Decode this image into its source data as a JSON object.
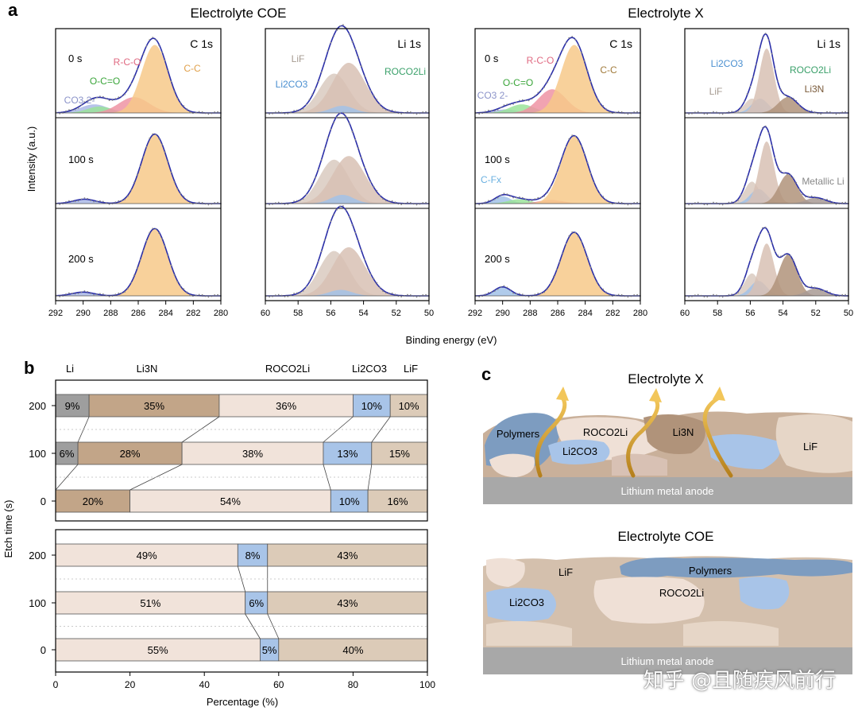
{
  "panel_a": {
    "label": "a",
    "group_titles": [
      "Electrolyte COE",
      "Electrolyte X"
    ],
    "ylabel": "Intensity (a.u.)",
    "xlabel": "Binding energy (eV)",
    "etch_labels": [
      "0 s",
      "100 s",
      "200 s"
    ],
    "c1s_ticks": [
      "292",
      "290",
      "288",
      "286",
      "284",
      "282",
      "280"
    ],
    "li1s_ticks": [
      "60",
      "58",
      "56",
      "54",
      "52",
      "50"
    ],
    "subplots": [
      {
        "title": "C 1s",
        "labels": [
          "CO3 2-",
          "O-C=O",
          "R-C-O",
          "C-C"
        ]
      },
      {
        "title": "Li 1s",
        "labels": [
          "LiF",
          "Li2CO3",
          "ROCO2Li"
        ]
      },
      {
        "title": "C 1s",
        "labels": [
          "CO3 2-",
          "O-C=O",
          "R-C-O",
          "C-C",
          "C-Fx"
        ]
      },
      {
        "title": "Li 1s",
        "labels": [
          "Li2CO3",
          "ROCO2Li",
          "LiF",
          "Li3N",
          "Metallic Li"
        ]
      }
    ],
    "colors": {
      "CC": "#f7c98a",
      "RCO": "#ef93a3",
      "OCO": "#9be39a",
      "CO3": "#aab8e6",
      "LiF": "#d9cac0",
      "ROCO2Li": "#d8c1b4",
      "Li2CO3": "#a2c2e8",
      "Li3N": "#b0937a",
      "fit": "#2b2fa8"
    }
  },
  "panel_b": {
    "label": "b",
    "xlabel": "Percentage (%)",
    "ylabel": "Etch time (s)",
    "xticks": [
      "0",
      "20",
      "40",
      "60",
      "80",
      "100"
    ],
    "header_labels": [
      "Li",
      "Li3N",
      "ROCO2Li",
      "Li2CO3",
      "LiF"
    ],
    "colors": {
      "Li": "#9e9e9e",
      "Li3N": "#c2a588",
      "ROCO2Li": "#f1e3da",
      "Li2CO3": "#a8c4e8",
      "LiF": "#dccbb8"
    }
  },
  "chart_data": [
    {
      "type": "bar",
      "title": "",
      "stacked": true,
      "orientation": "horizontal",
      "xlabel": "Percentage (%)",
      "ylabel": "Etch time (s)",
      "xlim": [
        0,
        100
      ],
      "categories": [
        "200",
        "100",
        "0"
      ],
      "series": [
        {
          "name": "Li",
          "values": [
            9,
            6,
            0
          ]
        },
        {
          "name": "Li3N",
          "values": [
            35,
            28,
            20
          ]
        },
        {
          "name": "ROCO2Li",
          "values": [
            36,
            38,
            54
          ]
        },
        {
          "name": "Li2CO3",
          "values": [
            10,
            13,
            10
          ]
        },
        {
          "name": "LiF",
          "values": [
            10,
            15,
            16
          ]
        }
      ]
    },
    {
      "type": "bar",
      "title": "",
      "stacked": true,
      "orientation": "horizontal",
      "xlabel": "Percentage (%)",
      "ylabel": "Etch time (s)",
      "xlim": [
        0,
        100
      ],
      "categories": [
        "200",
        "100",
        "0"
      ],
      "series": [
        {
          "name": "ROCO2Li",
          "values": [
            49,
            51,
            55
          ]
        },
        {
          "name": "Li2CO3",
          "values": [
            8,
            6,
            5
          ]
        },
        {
          "name": "LiF",
          "values": [
            43,
            43,
            40
          ]
        }
      ]
    }
  ],
  "panel_c": {
    "label": "c",
    "top_title": "Electrolyte X",
    "top_labels": [
      "Polymers",
      "ROCO2Li",
      "Li3N",
      "Li2CO3",
      "LiF"
    ],
    "top_anode": "Lithium metal anode",
    "bottom_title": "Electrolyte COE",
    "bottom_labels": [
      "LiF",
      "Polymers",
      "ROCO2Li",
      "Li2CO3"
    ],
    "bottom_anode": "Lithium metal anode"
  },
  "watermark": "知乎 @且随疾风前行"
}
